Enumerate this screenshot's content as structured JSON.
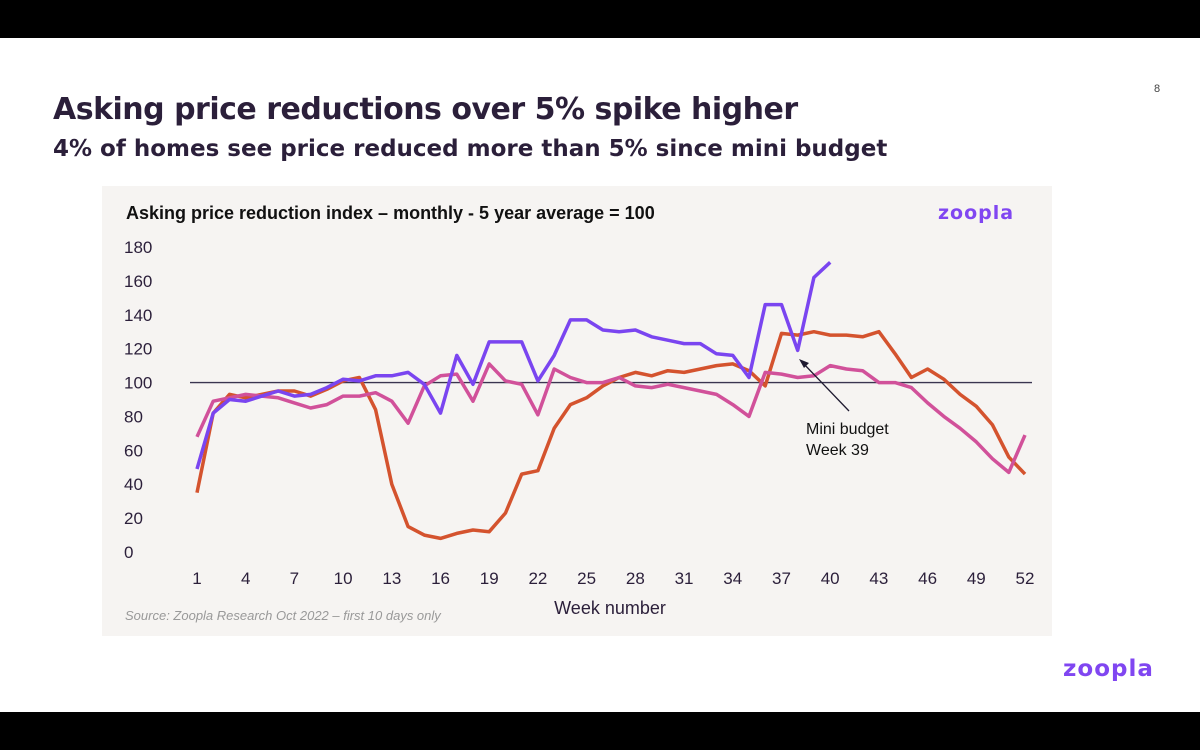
{
  "slide": {
    "title": "Asking price reductions over 5% spike higher",
    "subtitle": "4% of homes see price reduced more than 5% since mini budget",
    "page_number": "8",
    "logo": "zoopla",
    "brand_color": "#8046f1"
  },
  "chart_data": {
    "type": "line",
    "title": "Asking price reduction index – monthly - 5 year average = 100",
    "xlabel": "Week number",
    "ylabel": "",
    "source": "Source:  Zoopla Research Oct 2022 – first 10 days only",
    "xlim": [
      1,
      52
    ],
    "ylim": [
      0,
      180
    ],
    "x_ticks": [
      1,
      4,
      7,
      10,
      13,
      16,
      19,
      22,
      25,
      28,
      31,
      34,
      37,
      40,
      43,
      46,
      49,
      52
    ],
    "y_ticks": [
      0,
      20,
      40,
      60,
      80,
      100,
      120,
      140,
      160,
      180
    ],
    "reference_line": 100,
    "grid": false,
    "legend": "none",
    "annotation": {
      "lines": [
        "Mini budget",
        "Week 39"
      ],
      "points_to_week": 39
    },
    "series": [
      {
        "color": "#d4532e",
        "start_week": 1,
        "values": [
          35,
          82,
          93,
          91,
          93,
          95,
          95,
          92,
          96,
          101,
          103,
          84,
          40,
          15,
          10,
          8,
          11,
          13,
          12,
          23,
          46,
          48,
          73,
          87,
          91,
          98,
          103,
          106,
          104,
          107,
          106,
          108,
          110,
          111,
          107,
          98,
          129,
          128,
          130,
          128,
          128,
          127,
          130,
          117,
          103,
          108,
          102,
          93,
          86,
          75,
          56,
          46
        ]
      },
      {
        "color": "#d1519a",
        "start_week": 1,
        "values": [
          68,
          89,
          91,
          93,
          92,
          91,
          88,
          85,
          87,
          92,
          92,
          94,
          89,
          76,
          98,
          104,
          105,
          89,
          111,
          101,
          99,
          81,
          108,
          103,
          100,
          100,
          103,
          98,
          97,
          99,
          97,
          95,
          93,
          87,
          80,
          106,
          105,
          103,
          104,
          110,
          108,
          107,
          100,
          100,
          97,
          88,
          80,
          73,
          65,
          55,
          47,
          69
        ]
      },
      {
        "color": "#7a45f0",
        "start_week": 1,
        "values": [
          49,
          82,
          90,
          89,
          92,
          95,
          92,
          93,
          97,
          102,
          101,
          104,
          104,
          106,
          99,
          82,
          116,
          99,
          124,
          124,
          124,
          101,
          116,
          137,
          137,
          131,
          130,
          131,
          127,
          125,
          123,
          123,
          117,
          116,
          103,
          146,
          146,
          119,
          162,
          171
        ]
      }
    ]
  }
}
